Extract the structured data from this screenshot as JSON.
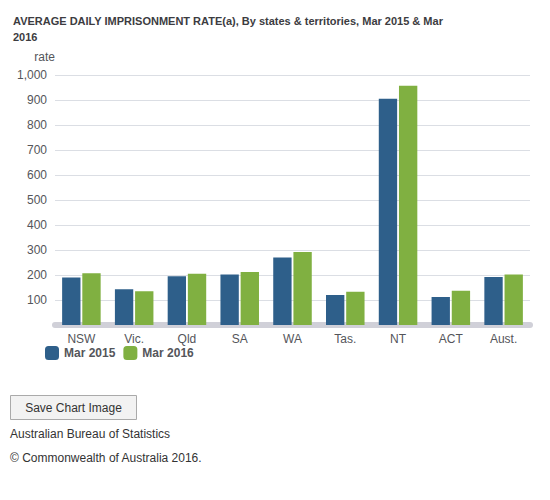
{
  "chart_data": {
    "type": "bar",
    "title": "AVERAGE DAILY IMPRISONMENT RATE(a), By states & territories, Mar 2015 & Mar\n2016",
    "y_label": "rate",
    "categories": [
      "NSW",
      "Vic.",
      "Qld",
      "SA",
      "WA",
      "Tas.",
      "NT",
      "ACT",
      "Aust."
    ],
    "series": [
      {
        "name": "Mar 2015",
        "color": "#2E5F8A",
        "values": [
          190,
          143,
          195,
          202,
          270,
          120,
          905,
          112,
          192
        ]
      },
      {
        "name": "Mar 2016",
        "color": "#80B041",
        "values": [
          207,
          135,
          205,
          212,
          292,
          133,
          957,
          137,
          202
        ]
      }
    ],
    "ylim": [
      0,
      1000
    ],
    "yticks": [
      100,
      200,
      300,
      400,
      500,
      600,
      700,
      800,
      900,
      {
        "value": 1000,
        "label": "1,000"
      }
    ],
    "grid": true,
    "legend": "lower left",
    "annotations": [
      "Save Chart Image",
      "Australian Bureau of Statistics",
      "© Commonwealth of Australia 2016."
    ]
  }
}
